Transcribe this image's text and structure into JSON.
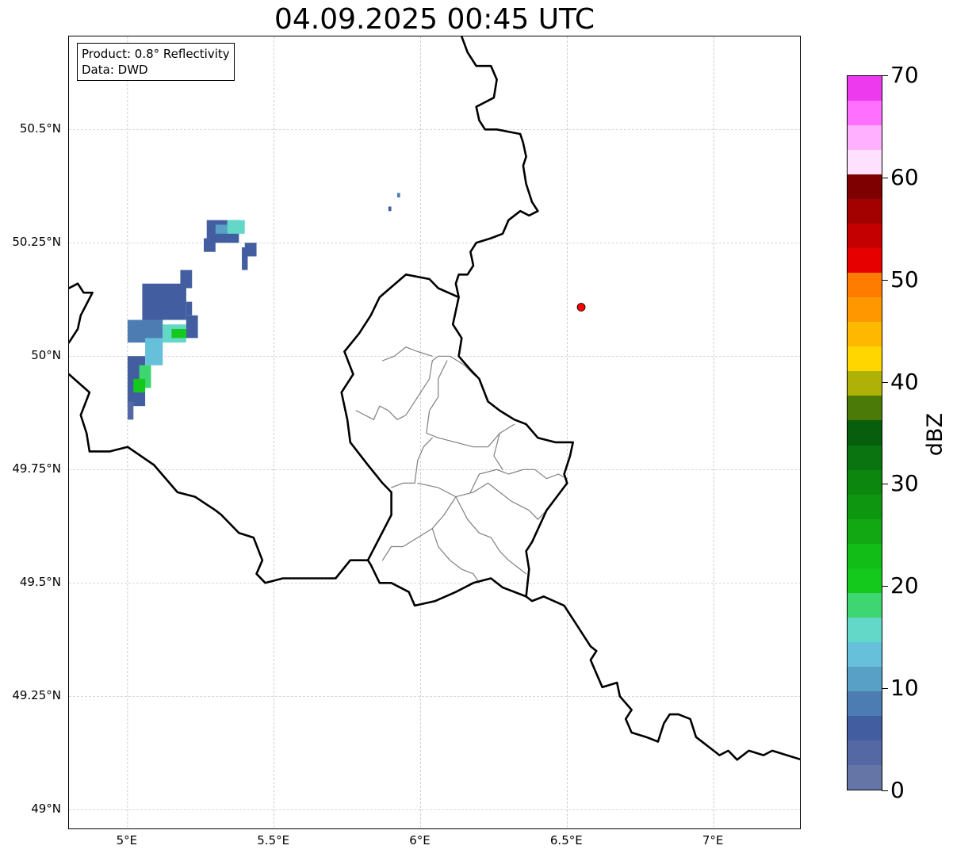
{
  "title": "04.09.2025 00:45 UTC",
  "info_box": {
    "product": "Product: 0.8° Reflectivity",
    "data_source": "Data: DWD"
  },
  "map": {
    "lon_range": [
      4.8,
      7.3
    ],
    "lat_range": [
      48.955,
      50.705
    ],
    "gridlines": true,
    "gridline_color": "#b0b0b0",
    "lat_ticks": [
      {
        "value": 49.0,
        "label": "49°N"
      },
      {
        "value": 49.25,
        "label": "49.25°N"
      },
      {
        "value": 49.5,
        "label": "49.5°N"
      },
      {
        "value": 49.75,
        "label": "49.75°N"
      },
      {
        "value": 50.0,
        "label": "50°N"
      },
      {
        "value": 50.25,
        "label": "50.25°N"
      },
      {
        "value": 50.5,
        "label": "50.5°N"
      }
    ],
    "lon_ticks": [
      {
        "value": 5.0,
        "label": "5°E"
      },
      {
        "value": 5.5,
        "label": "5.5°E"
      },
      {
        "value": 6.0,
        "label": "6°E"
      },
      {
        "value": 6.5,
        "label": "6.5°E"
      },
      {
        "value": 7.0,
        "label": "7°E"
      }
    ],
    "radar_site": {
      "lon": 6.548,
      "lat": 50.108,
      "color": "#ff0000"
    },
    "borders": [
      [
        [
          6.14,
          50.705
        ],
        [
          6.16,
          50.67
        ],
        [
          6.19,
          50.64
        ],
        [
          6.24,
          50.64
        ],
        [
          6.26,
          50.61
        ],
        [
          6.25,
          50.57
        ],
        [
          6.19,
          50.55
        ],
        [
          6.2,
          50.52
        ],
        [
          6.22,
          50.5
        ],
        [
          6.26,
          50.5
        ],
        [
          6.34,
          50.49
        ],
        [
          6.35,
          50.47
        ],
        [
          6.36,
          50.44
        ],
        [
          6.35,
          50.42
        ],
        [
          6.36,
          50.38
        ],
        [
          6.38,
          50.34
        ],
        [
          6.4,
          50.32
        ],
        [
          6.37,
          50.31
        ],
        [
          6.34,
          50.32
        ],
        [
          6.3,
          50.3
        ],
        [
          6.28,
          50.27
        ],
        [
          6.24,
          50.26
        ],
        [
          6.19,
          50.25
        ],
        [
          6.17,
          50.23
        ],
        [
          6.18,
          50.2
        ],
        [
          6.16,
          50.18
        ],
        [
          6.13,
          50.18
        ],
        [
          6.12,
          50.16
        ],
        [
          6.13,
          50.13
        ],
        [
          6.12,
          50.1
        ],
        [
          6.11,
          50.07
        ],
        [
          6.14,
          50.04
        ],
        [
          6.13,
          50.0
        ],
        [
          6.17,
          49.97
        ],
        [
          6.2,
          49.95
        ],
        [
          6.23,
          49.9
        ],
        [
          6.27,
          49.88
        ],
        [
          6.32,
          49.86
        ],
        [
          6.36,
          49.85
        ],
        [
          6.4,
          49.82
        ],
        [
          6.46,
          49.81
        ],
        [
          6.52,
          49.81
        ],
        [
          6.51,
          49.78
        ],
        [
          6.49,
          49.74
        ],
        [
          6.5,
          49.72
        ],
        [
          6.43,
          49.66
        ],
        [
          6.38,
          49.59
        ],
        [
          6.36,
          49.57
        ],
        [
          6.37,
          49.53
        ],
        [
          6.36,
          49.47
        ]
      ],
      [
        [
          6.36,
          49.47
        ],
        [
          6.38,
          49.46
        ],
        [
          6.42,
          49.47
        ],
        [
          6.49,
          49.45
        ],
        [
          6.53,
          49.41
        ],
        [
          6.56,
          49.38
        ],
        [
          6.58,
          49.36
        ],
        [
          6.6,
          49.35
        ],
        [
          6.58,
          49.33
        ],
        [
          6.6,
          49.3
        ],
        [
          6.62,
          49.27
        ],
        [
          6.67,
          49.28
        ],
        [
          6.68,
          49.25
        ],
        [
          6.72,
          49.22
        ],
        [
          6.7,
          49.2
        ],
        [
          6.72,
          49.17
        ],
        [
          6.77,
          49.16
        ],
        [
          6.81,
          49.15
        ],
        [
          6.83,
          49.19
        ],
        [
          6.85,
          49.21
        ],
        [
          6.88,
          49.21
        ],
        [
          6.92,
          49.2
        ],
        [
          6.94,
          49.16
        ],
        [
          7.02,
          49.12
        ],
        [
          7.05,
          49.13
        ],
        [
          7.08,
          49.11
        ],
        [
          7.12,
          49.13
        ],
        [
          7.17,
          49.12
        ],
        [
          7.2,
          49.13
        ],
        [
          7.25,
          49.12
        ],
        [
          7.3,
          49.11
        ]
      ],
      [
        [
          6.36,
          49.47
        ],
        [
          6.28,
          49.49
        ],
        [
          6.24,
          49.51
        ],
        [
          6.18,
          49.5
        ],
        [
          6.15,
          49.49
        ],
        [
          6.12,
          49.48
        ],
        [
          6.05,
          49.46
        ],
        [
          5.98,
          49.45
        ],
        [
          5.96,
          49.48
        ],
        [
          5.9,
          49.5
        ],
        [
          5.86,
          49.5
        ],
        [
          5.83,
          49.54
        ],
        [
          5.82,
          49.55
        ],
        [
          5.76,
          49.55
        ],
        [
          5.71,
          49.51
        ],
        [
          5.6,
          49.51
        ],
        [
          5.53,
          49.51
        ],
        [
          5.47,
          49.5
        ],
        [
          5.44,
          49.52
        ],
        [
          5.46,
          49.55
        ],
        [
          5.43,
          49.6
        ],
        [
          5.38,
          49.61
        ],
        [
          5.32,
          49.65
        ],
        [
          5.3,
          49.66
        ],
        [
          5.23,
          49.69
        ],
        [
          5.17,
          49.7
        ],
        [
          5.09,
          49.76
        ],
        [
          5.0,
          49.8
        ],
        [
          4.94,
          49.79
        ],
        [
          4.87,
          49.79
        ],
        [
          4.86,
          49.83
        ],
        [
          4.84,
          49.87
        ],
        [
          4.87,
          49.92
        ],
        [
          4.8,
          49.96
        ]
      ],
      [
        [
          4.8,
          50.15
        ],
        [
          4.83,
          50.16
        ],
        [
          4.85,
          50.14
        ],
        [
          4.88,
          50.14
        ],
        [
          4.84,
          50.09
        ],
        [
          4.83,
          50.06
        ],
        [
          4.8,
          50.03
        ]
      ],
      [
        [
          5.82,
          49.55
        ],
        [
          5.86,
          49.6
        ],
        [
          5.9,
          49.65
        ],
        [
          5.9,
          49.7
        ],
        [
          5.87,
          49.72
        ],
        [
          5.82,
          49.76
        ],
        [
          5.76,
          49.81
        ],
        [
          5.75,
          49.86
        ],
        [
          5.73,
          49.92
        ],
        [
          5.77,
          49.96
        ],
        [
          5.74,
          50.01
        ],
        [
          5.79,
          50.05
        ],
        [
          5.83,
          50.09
        ],
        [
          5.86,
          50.13
        ],
        [
          5.95,
          50.18
        ],
        [
          6.03,
          50.17
        ],
        [
          6.06,
          50.15
        ],
        [
          6.13,
          50.13
        ]
      ]
    ],
    "districts": [
      [
        [
          5.78,
          49.88
        ],
        [
          5.84,
          49.86
        ],
        [
          5.86,
          49.89
        ],
        [
          5.89,
          49.88
        ],
        [
          5.92,
          49.86
        ],
        [
          5.95,
          49.87
        ],
        [
          5.99,
          49.91
        ],
        [
          6.03,
          49.95
        ],
        [
          6.04,
          49.99
        ],
        [
          6.06,
          50.0
        ],
        [
          6.1,
          50.0
        ],
        [
          6.15,
          49.98
        ],
        [
          6.18,
          49.96
        ],
        [
          6.2,
          49.95
        ]
      ],
      [
        [
          5.87,
          49.99
        ],
        [
          5.91,
          50.0
        ],
        [
          5.95,
          50.02
        ],
        [
          5.99,
          50.01
        ],
        [
          6.04,
          50.0
        ]
      ],
      [
        [
          6.09,
          49.99
        ],
        [
          6.06,
          49.95
        ],
        [
          6.06,
          49.91
        ],
        [
          6.03,
          49.88
        ],
        [
          6.02,
          49.83
        ],
        [
          6.06,
          49.82
        ],
        [
          6.12,
          49.81
        ],
        [
          6.18,
          49.8
        ],
        [
          6.23,
          49.8
        ],
        [
          6.27,
          49.83
        ],
        [
          6.32,
          49.85
        ]
      ],
      [
        [
          5.9,
          49.71
        ],
        [
          5.94,
          49.72
        ],
        [
          5.98,
          49.72
        ],
        [
          5.99,
          49.77
        ],
        [
          6.01,
          49.8
        ],
        [
          6.04,
          49.82
        ]
      ],
      [
        [
          5.99,
          49.72
        ],
        [
          6.06,
          49.71
        ],
        [
          6.12,
          49.69
        ],
        [
          6.18,
          49.7
        ],
        [
          6.23,
          49.72
        ],
        [
          6.27,
          49.7
        ],
        [
          6.31,
          49.68
        ],
        [
          6.37,
          49.66
        ],
        [
          6.4,
          49.64
        ],
        [
          6.43,
          49.66
        ]
      ],
      [
        [
          6.17,
          49.7
        ],
        [
          6.2,
          49.74
        ],
        [
          6.26,
          49.75
        ],
        [
          6.3,
          49.74
        ],
        [
          6.35,
          49.75
        ],
        [
          6.39,
          49.75
        ],
        [
          6.43,
          49.73
        ],
        [
          6.47,
          49.74
        ],
        [
          6.5,
          49.73
        ]
      ],
      [
        [
          6.27,
          49.83
        ],
        [
          6.25,
          49.78
        ],
        [
          6.28,
          49.75
        ]
      ],
      [
        [
          6.12,
          49.69
        ],
        [
          6.08,
          49.65
        ],
        [
          6.04,
          49.62
        ],
        [
          5.99,
          49.6
        ],
        [
          5.94,
          49.58
        ],
        [
          5.9,
          49.58
        ],
        [
          5.87,
          49.55
        ]
      ],
      [
        [
          6.04,
          49.62
        ],
        [
          6.06,
          49.58
        ],
        [
          6.1,
          49.55
        ],
        [
          6.14,
          49.53
        ],
        [
          6.18,
          49.52
        ],
        [
          6.2,
          49.5
        ]
      ],
      [
        [
          6.12,
          49.69
        ],
        [
          6.16,
          49.64
        ],
        [
          6.2,
          49.61
        ],
        [
          6.24,
          49.6
        ],
        [
          6.27,
          49.57
        ],
        [
          6.3,
          49.55
        ],
        [
          6.34,
          49.53
        ],
        [
          6.36,
          49.52
        ]
      ]
    ],
    "echo_cells": [
      {
        "lon": 5.05,
        "lat": 50.08,
        "lon2": 5.2,
        "lat2": 50.16,
        "dbz": 5
      },
      {
        "lon": 5.0,
        "lat": 50.03,
        "lon2": 5.12,
        "lat2": 50.08,
        "dbz": 8
      },
      {
        "lon": 5.0,
        "lat": 49.89,
        "lon2": 5.06,
        "lat2": 50.0,
        "dbz": 6
      },
      {
        "lon": 5.0,
        "lat": 49.86,
        "lon2": 5.02,
        "lat2": 49.9,
        "dbz": 4
      },
      {
        "lon": 5.06,
        "lat": 49.98,
        "lon2": 5.12,
        "lat2": 50.04,
        "dbz": 14
      },
      {
        "lon": 5.04,
        "lat": 49.93,
        "lon2": 5.08,
        "lat2": 49.98,
        "dbz": 18
      },
      {
        "lon": 5.12,
        "lat": 50.03,
        "lon2": 5.2,
        "lat2": 50.07,
        "dbz": 16
      },
      {
        "lon": 5.2,
        "lat": 50.04,
        "lon2": 5.24,
        "lat2": 50.09,
        "dbz": 7
      },
      {
        "lon": 5.2,
        "lat": 50.09,
        "lon2": 5.22,
        "lat2": 50.12,
        "dbz": 6
      },
      {
        "lon": 5.18,
        "lat": 50.12,
        "lon2": 5.2,
        "lat2": 50.15,
        "dbz": 7
      },
      {
        "lon": 5.18,
        "lat": 50.15,
        "lon2": 5.22,
        "lat2": 50.19,
        "dbz": 5
      },
      {
        "lon": 5.15,
        "lat": 50.04,
        "lon2": 5.2,
        "lat2": 50.06,
        "dbz": 22
      },
      {
        "lon": 5.02,
        "lat": 49.92,
        "lon2": 5.06,
        "lat2": 49.95,
        "dbz": 20
      },
      {
        "lon": 5.27,
        "lat": 50.25,
        "lon2": 5.38,
        "lat2": 50.3,
        "dbz": 6
      },
      {
        "lon": 5.34,
        "lat": 50.27,
        "lon2": 5.4,
        "lat2": 50.3,
        "dbz": 15
      },
      {
        "lon": 5.26,
        "lat": 50.23,
        "lon2": 5.3,
        "lat2": 50.26,
        "dbz": 5
      },
      {
        "lon": 5.4,
        "lat": 50.22,
        "lon2": 5.44,
        "lat2": 50.25,
        "dbz": 5
      },
      {
        "lon": 5.39,
        "lat": 50.19,
        "lon2": 5.41,
        "lat2": 50.24,
        "dbz": 5
      },
      {
        "lon": 5.3,
        "lat": 50.27,
        "lon2": 5.34,
        "lat2": 50.29,
        "dbz": 12
      },
      {
        "lon": 5.92,
        "lat": 50.35,
        "lon2": 5.93,
        "lat2": 50.36,
        "dbz": 8
      },
      {
        "lon": 5.89,
        "lat": 50.32,
        "lon2": 5.9,
        "lat2": 50.33,
        "dbz": 6
      }
    ]
  },
  "colorbar": {
    "vmin": 0,
    "vmax": 70,
    "step": 2.5,
    "label": "dBZ",
    "ticks": [
      {
        "value": 0,
        "label": "0"
      },
      {
        "value": 10,
        "label": "10"
      },
      {
        "value": 20,
        "label": "20"
      },
      {
        "value": 30,
        "label": "30"
      },
      {
        "value": 40,
        "label": "40"
      },
      {
        "value": 50,
        "label": "50"
      },
      {
        "value": 60,
        "label": "60"
      },
      {
        "value": 70,
        "label": "70"
      }
    ],
    "colors": [
      "#6575a6",
      "#5468a3",
      "#425ea0",
      "#4c7cb2",
      "#59a0c6",
      "#66c0da",
      "#64d8c8",
      "#3dd671",
      "#15c91c",
      "#13bd17",
      "#11a813",
      "#0f9611",
      "#0c860f",
      "#097410",
      "#075e0c",
      "#4b7a08",
      "#afb106",
      "#ffd600",
      "#ffb800",
      "#ff9800",
      "#ff7c00",
      "#e60000",
      "#c40000",
      "#a30000",
      "#7f0000",
      "#ffe0ff",
      "#ffb0ff",
      "#ff70ff",
      "#ee3aee"
    ]
  }
}
